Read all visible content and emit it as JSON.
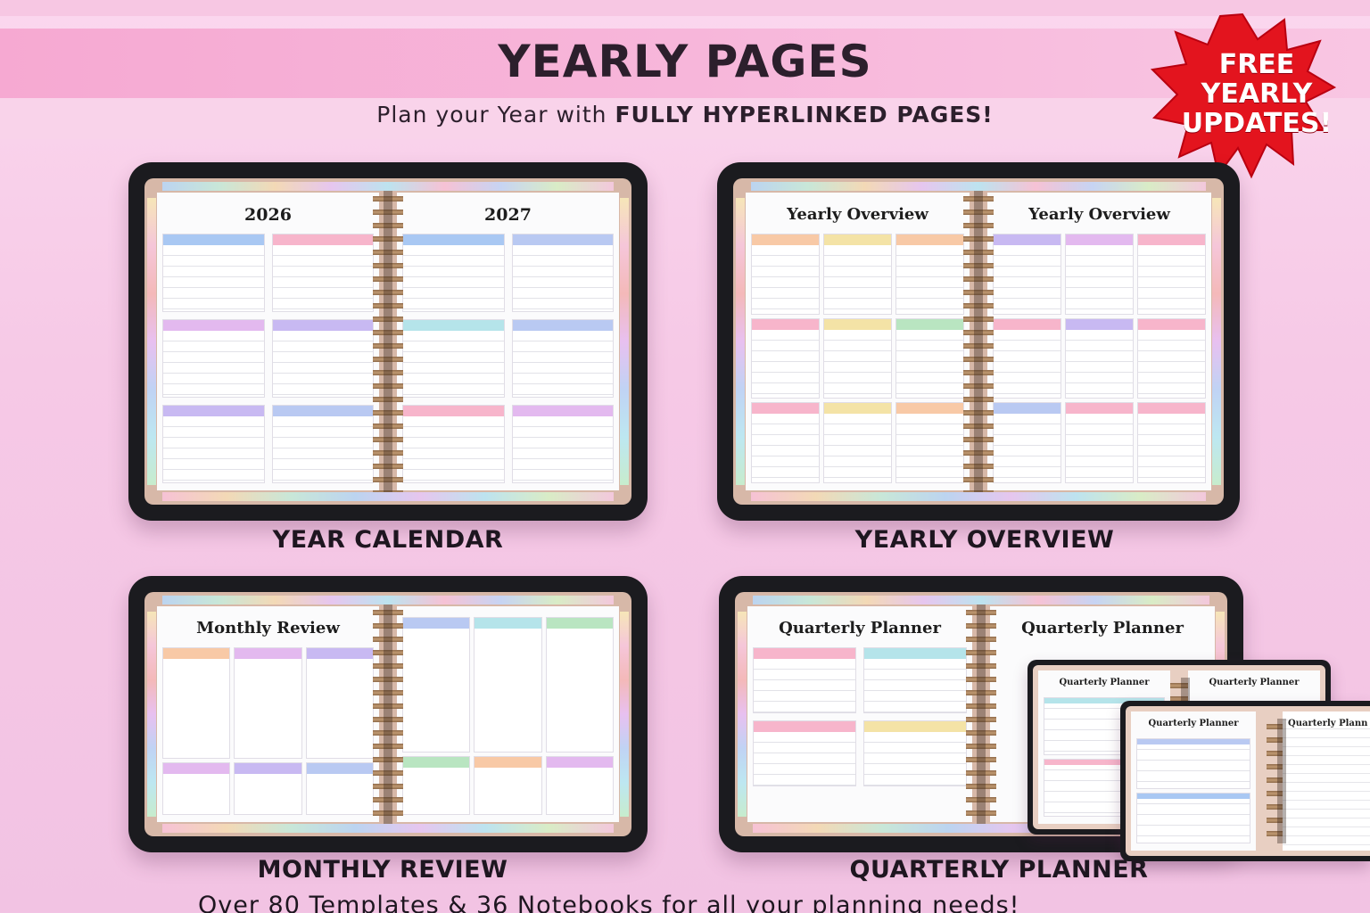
{
  "header": {
    "title": "YEARLY PAGES",
    "subtitle_prefix": "Plan your Year with ",
    "subtitle_bold": "FULLY HYPERLINKED PAGES!"
  },
  "badge": {
    "line1": "FREE",
    "line2": "YEARLY",
    "line3": "UPDATES!",
    "color": "#e3141e"
  },
  "panels": [
    {
      "label": "YEAR CALENDAR",
      "left_title": "2026",
      "right_title": "2027"
    },
    {
      "label": "YEARLY OVERVIEW",
      "left_title": "Yearly Overview",
      "right_title": "Yearly Overview"
    },
    {
      "label": "MONTHLY REVIEW",
      "left_title": "Monthly Review",
      "right_title": ""
    },
    {
      "label": "QUARTERLY PLANNER",
      "left_title": "Quarterly Planner",
      "right_title": "Quarterly Planner"
    }
  ],
  "mini_tablets": [
    {
      "left_title": "Quarterly Planner",
      "right_title": "Quarterly Planner"
    },
    {
      "left_title": "Quarterly Planner",
      "right_title": "Quarterly Plann"
    }
  ],
  "footer": {
    "text": "Over 80 Templates & 36 Notebooks for all your planning needs!"
  },
  "colors": {
    "background": "#f6c9e6",
    "banner": "#f6a9d2",
    "tablet_frame": "#1b1b1f",
    "badge": "#e3141e"
  }
}
